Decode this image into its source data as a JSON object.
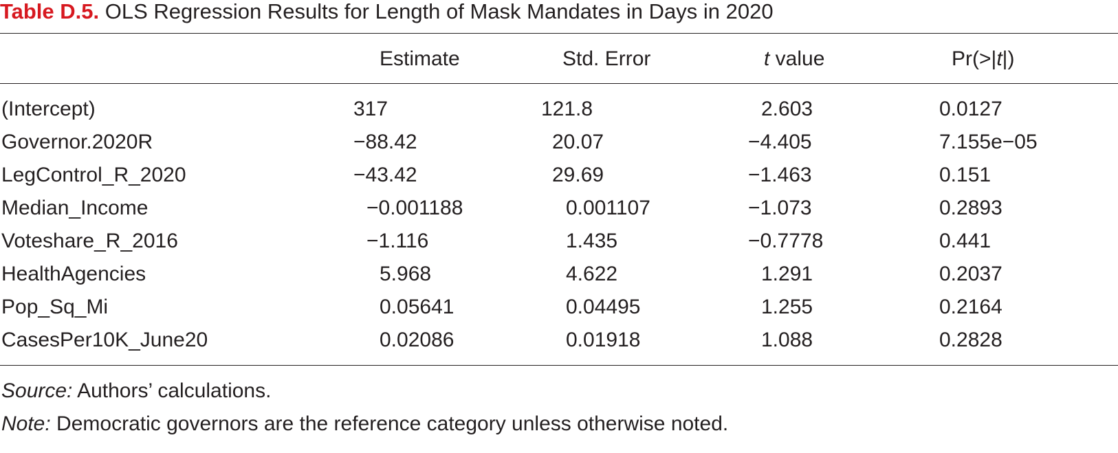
{
  "table": {
    "label": "Table D.5.",
    "title": "OLS Regression Results for Length of Mask Mandates in Days in 2020",
    "columns": {
      "estimate": "Estimate",
      "std_error": "Std. Error",
      "t_value_italic": "t",
      "t_value_rest": " value",
      "p_prefix": "Pr(>|",
      "p_italic": "t",
      "p_suffix": "|)"
    },
    "rows": [
      {
        "term": "(Intercept)",
        "estimate": "317",
        "std_error": "121.8",
        "t_value": "2.603",
        "p_value": "0.0127"
      },
      {
        "term": "Governor.2020R",
        "estimate": "−88.42",
        "std_error": "20.07",
        "t_value": "−4.405",
        "p_value": "7.155e−05"
      },
      {
        "term": "LegControl_R_2020",
        "estimate": "−43.42",
        "std_error": "29.69",
        "t_value": "−1.463",
        "p_value": "0.151"
      },
      {
        "term": "Median_Income",
        "estimate": "−0.001188",
        "std_error": "0.001107",
        "t_value": "−1.073",
        "p_value": "0.2893"
      },
      {
        "term": "Voteshare_R_2016",
        "estimate": "−1.116",
        "std_error": "1.435",
        "t_value": "−0.7778",
        "p_value": "0.441"
      },
      {
        "term": "HealthAgencies",
        "estimate": "5.968",
        "std_error": "4.622",
        "t_value": "1.291",
        "p_value": "0.2037"
      },
      {
        "term": "Pop_Sq_Mi",
        "estimate": "0.05641",
        "std_error": "0.04495",
        "t_value": "1.255",
        "p_value": "0.2164"
      },
      {
        "term": "CasesPer10K_June20",
        "estimate": "0.02086",
        "std_error": "0.01918",
        "t_value": "1.088",
        "p_value": "0.2828"
      }
    ]
  },
  "notes": {
    "source_label": "Source:",
    "source_text": " Authors’ calculations.",
    "note_label": "Note:",
    "note_text": " Democratic governors are the reference category unless otherwise noted."
  }
}
